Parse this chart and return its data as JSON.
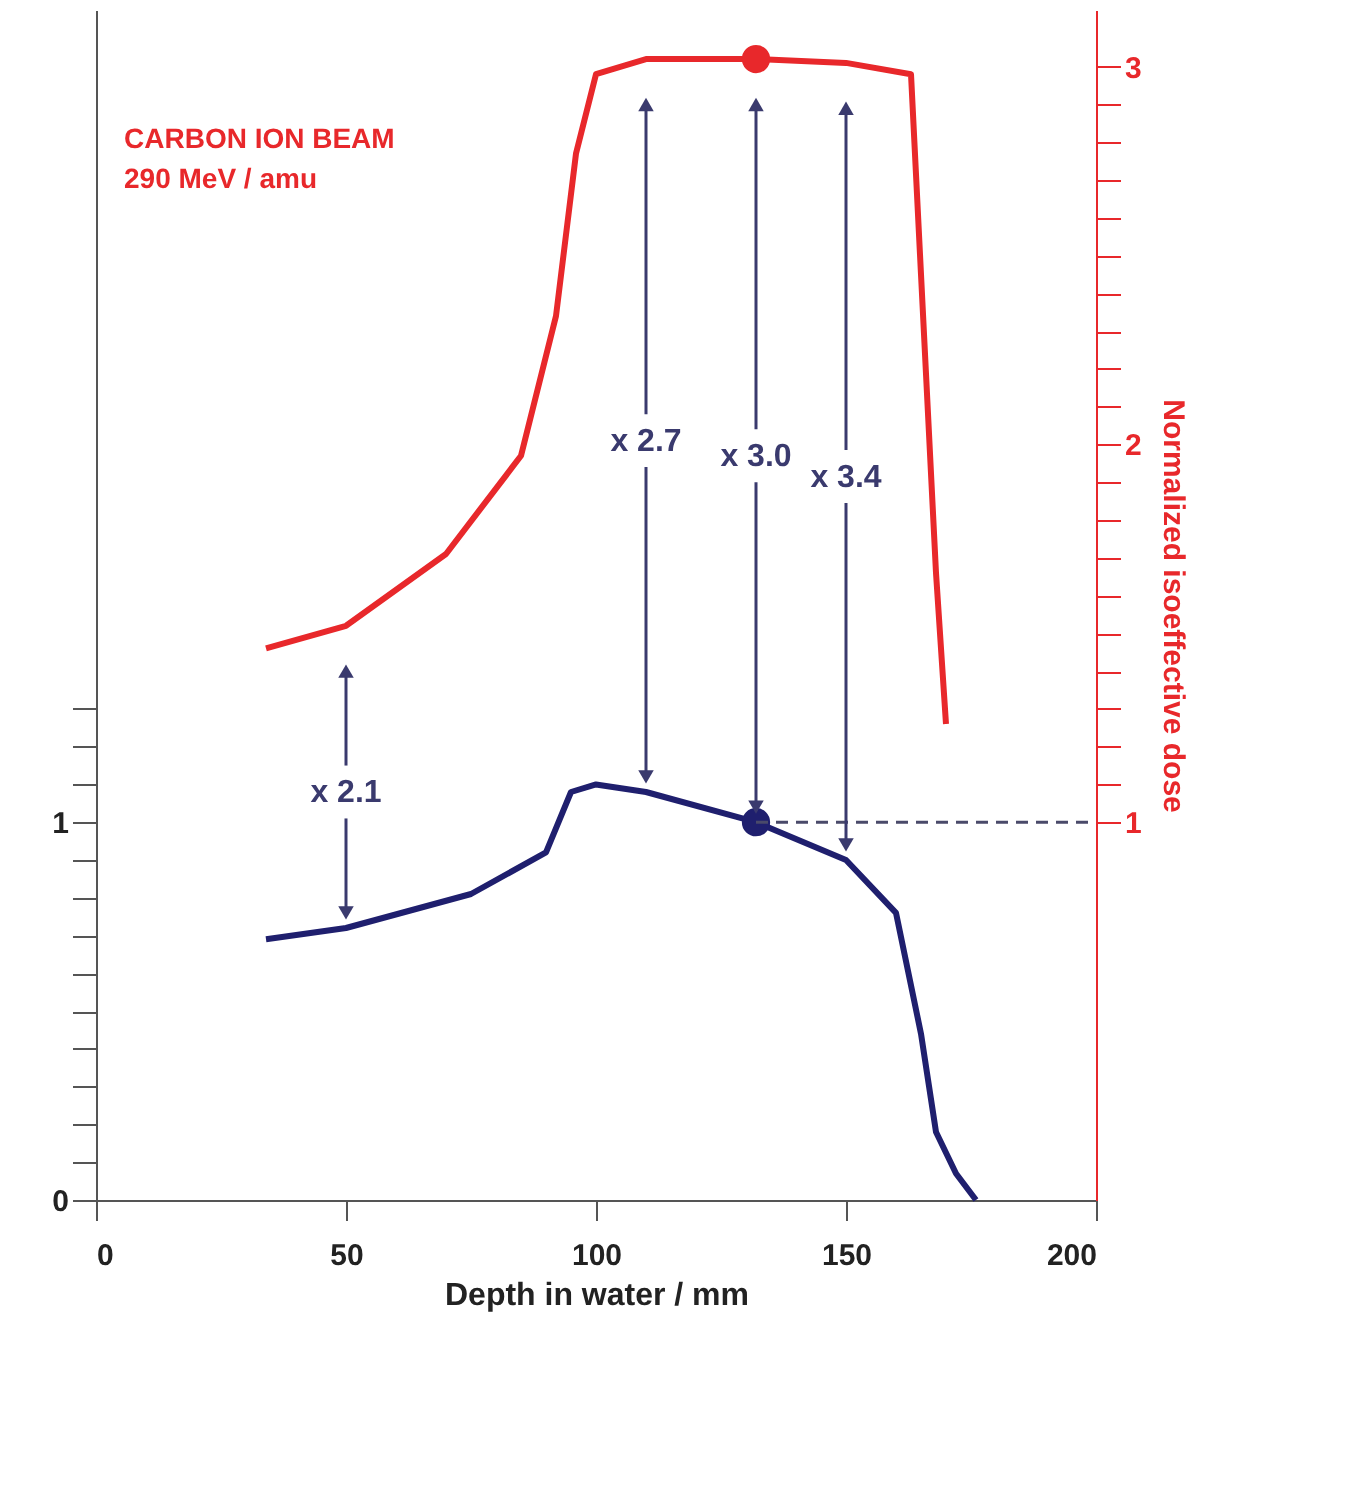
{
  "chart_data": {
    "type": "line",
    "xlabel": "Depth in water / mm",
    "y2label": "Normalized isoeffective dose",
    "xlim": [
      0,
      200
    ],
    "xticks": [
      0,
      50,
      100,
      150,
      200
    ],
    "ylim": [
      0,
      3.15
    ],
    "yticks": [
      0,
      {
        "value": 0.1,
        "label": null
      },
      {
        "value": 0.2,
        "label": null
      },
      {
        "value": 0.3,
        "label": null
      },
      {
        "value": 0.4,
        "label": null
      },
      {
        "value": 0.5,
        "label": null
      },
      {
        "value": 0.6,
        "label": null
      },
      {
        "value": 0.7,
        "label": null
      },
      {
        "value": 0.8,
        "label": null
      },
      {
        "value": 0.9,
        "label": null
      },
      1,
      {
        "value": 1.1,
        "label": null
      },
      {
        "value": 1.2,
        "label": null
      },
      {
        "value": 1.3,
        "label": null
      }
    ],
    "y2lim": [
      0,
      3.15
    ],
    "y2ticks": [
      1,
      {
        "value": 1.1,
        "label": null
      },
      {
        "value": 1.2,
        "label": null
      },
      {
        "value": 1.3,
        "label": null
      },
      {
        "value": 1.4,
        "label": null
      },
      {
        "value": 1.5,
        "label": null
      },
      {
        "value": 1.6,
        "label": null
      },
      {
        "value": 1.7,
        "label": null
      },
      {
        "value": 1.8,
        "label": null
      },
      {
        "value": 1.9,
        "label": null
      },
      2,
      {
        "value": 2.1,
        "label": null
      },
      {
        "value": 2.2,
        "label": null
      },
      {
        "value": 2.3,
        "label": null
      },
      {
        "value": 2.4,
        "label": null
      },
      {
        "value": 2.5,
        "label": null
      },
      {
        "value": 2.6,
        "label": null
      },
      {
        "value": 2.7,
        "label": null
      },
      {
        "value": 2.8,
        "label": null
      },
      {
        "value": 2.9,
        "label": null
      },
      3
    ],
    "grid": false,
    "line_style": "solid",
    "marker": "none",
    "series": [
      {
        "color": "#1f1f6e",
        "x": [
          34,
          50,
          75,
          90,
          95,
          100,
          110,
          132,
          150,
          160,
          165,
          168,
          172,
          176
        ],
        "values": [
          0.69,
          0.72,
          0.81,
          0.92,
          1.08,
          1.1,
          1.08,
          1.0,
          0.9,
          0.76,
          0.44,
          0.18,
          0.07,
          0.0
        ]
      },
      {
        "color": "#e8282b",
        "axis": "y2",
        "x": [
          34,
          50,
          70,
          85,
          92,
          96,
          100,
          110,
          132,
          150,
          163,
          165,
          168,
          170
        ],
        "values": [
          1.46,
          1.52,
          1.71,
          1.97,
          2.34,
          2.77,
          2.98,
          3.02,
          3.02,
          3.01,
          2.98,
          2.45,
          1.66,
          1.26
        ]
      },
      {
        "type": "scatter",
        "marker": "circle",
        "color": "#1f1f6e",
        "x": [
          132
        ],
        "values": [
          1.0
        ]
      },
      {
        "type": "scatter",
        "marker": "circle",
        "color": "#e8282b",
        "axis": "y2",
        "x": [
          132
        ],
        "values": [
          3.02
        ]
      },
      {
        "type": "line",
        "line_style": "dashed",
        "color": "#4a4a6a",
        "x": [
          132,
          200
        ],
        "values": [
          1.0,
          1.0
        ]
      }
    ],
    "annotations": [
      "CARBON ION BEAM",
      "290 MeV / amu",
      {
        "text": "x 2.1",
        "x": 50,
        "y": 0.72
      },
      {
        "text": "x 2.7",
        "x": 110,
        "y": 1.08
      },
      {
        "text": "x 3.0",
        "x": 132,
        "y": 1.0
      },
      {
        "text": "x 3.4",
        "x": 150,
        "y": 0.9
      }
    ]
  }
}
